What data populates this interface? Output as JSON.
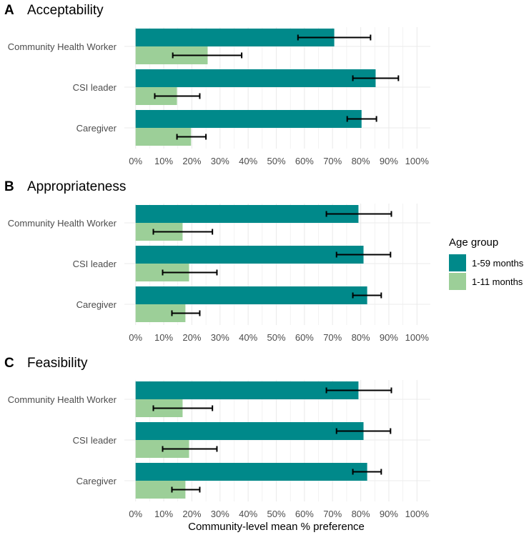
{
  "colors": {
    "1-59 months": "#00898a",
    "1-11 months": "#9ccf98",
    "grid": "#ebebeb"
  },
  "legend": {
    "title": "Age group",
    "items": [
      "1-59 months",
      "1-11 months"
    ]
  },
  "chart_data": [
    {
      "type": "bar",
      "panel": "A",
      "title": "Acceptability",
      "categories": [
        "Community Health Worker",
        "CSI leader",
        "Caregiver"
      ],
      "series": [
        {
          "name": "1-59 months",
          "values": [
            70.6,
            85.3,
            80.3
          ],
          "ci_low": [
            57.7,
            77.2,
            75.2
          ],
          "ci_high": [
            83.5,
            93.4,
            85.6
          ]
        },
        {
          "name": "1-11 months",
          "values": [
            25.6,
            14.7,
            19.7
          ],
          "ci_low": [
            13.2,
            6.8,
            14.7
          ],
          "ci_high": [
            37.7,
            22.8,
            25.0
          ]
        }
      ],
      "xlim": [
        0,
        100
      ],
      "xticks": [
        "0%",
        "10%",
        "20%",
        "30%",
        "40%",
        "50%",
        "60%",
        "70%",
        "80%",
        "90%",
        "100%"
      ]
    },
    {
      "type": "bar",
      "panel": "B",
      "title": "Appropriateness",
      "categories": [
        "Community Health Worker",
        "CSI leader",
        "Caregiver"
      ],
      "series": [
        {
          "name": "1-59 months",
          "values": [
            79.2,
            81.0,
            82.3
          ],
          "ci_low": [
            67.8,
            71.4,
            77.2
          ],
          "ci_high": [
            90.9,
            90.6,
            87.3
          ]
        },
        {
          "name": "1-11 months",
          "values": [
            16.7,
            19.0,
            17.7
          ],
          "ci_low": [
            6.3,
            9.6,
            12.9
          ],
          "ci_high": [
            27.3,
            28.9,
            22.8
          ]
        }
      ],
      "xlim": [
        0,
        100
      ],
      "xticks": [
        "0%",
        "10%",
        "20%",
        "30%",
        "40%",
        "50%",
        "60%",
        "70%",
        "80%",
        "90%",
        "100%"
      ]
    },
    {
      "type": "bar",
      "panel": "C",
      "title": "Feasibility",
      "categories": [
        "Community Health Worker",
        "CSI leader",
        "Caregiver"
      ],
      "series": [
        {
          "name": "1-59 months",
          "values": [
            79.2,
            81.0,
            82.3
          ],
          "ci_low": [
            67.8,
            71.4,
            77.2
          ],
          "ci_high": [
            90.9,
            90.6,
            87.3
          ]
        },
        {
          "name": "1-11 months",
          "values": [
            16.7,
            19.0,
            17.7
          ],
          "ci_low": [
            6.3,
            9.6,
            12.9
          ],
          "ci_high": [
            27.3,
            28.9,
            22.8
          ]
        }
      ],
      "xlim": [
        0,
        100
      ],
      "xticks": [
        "0%",
        "10%",
        "20%",
        "30%",
        "40%",
        "50%",
        "60%",
        "70%",
        "80%",
        "90%",
        "100%"
      ],
      "xlabel": "Community-level mean % preference"
    }
  ]
}
